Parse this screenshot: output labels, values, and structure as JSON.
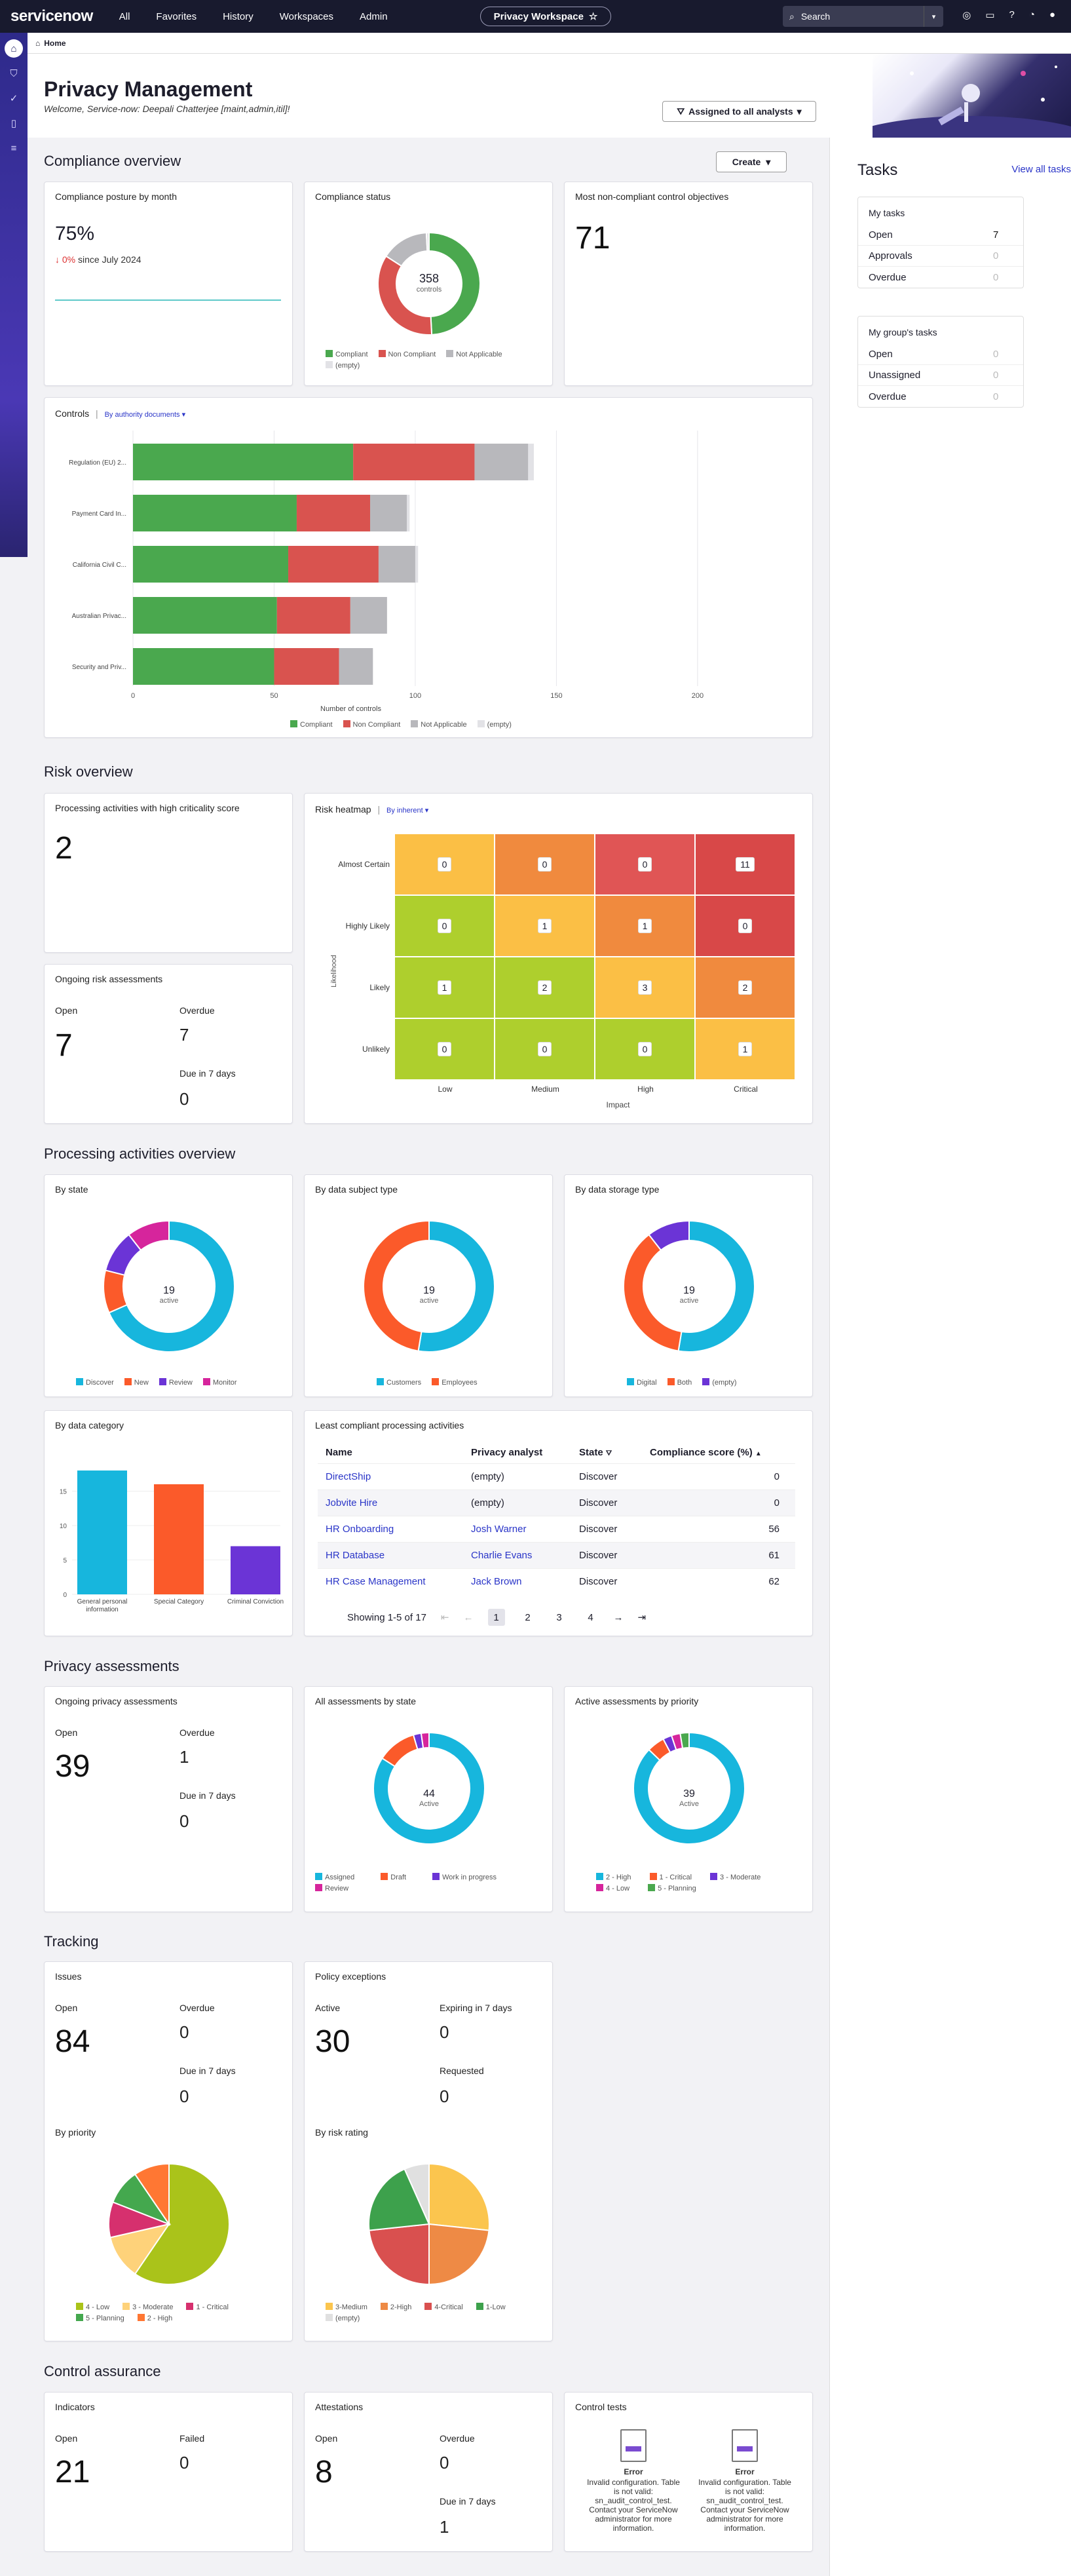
{
  "nav": {
    "logo": "servicenow",
    "links": [
      "All",
      "Favorites",
      "History",
      "Workspaces",
      "Admin"
    ],
    "workspace_pill": "Privacy Workspace",
    "search_placeholder": "Search"
  },
  "tab": {
    "label": "Home"
  },
  "hero": {
    "title": "Privacy Management",
    "welcome": "Welcome, Service-now: Deepali Chatterjee [maint,admin,itil]!",
    "assigned_button": "Assigned to all analysts"
  },
  "compliance": {
    "heading": "Compliance overview",
    "create_button": "Create",
    "posture": {
      "title": "Compliance posture by month",
      "value": "75%",
      "change": "0%",
      "since": "since July 2024"
    },
    "status": {
      "title": "Compliance status",
      "total": "358",
      "total_label": "controls",
      "legend": [
        "Compliant",
        "Non Compliant",
        "Not Applicable",
        "(empty)"
      ]
    },
    "noncompliant": {
      "title": "Most non-compliant control objectives",
      "value": "71"
    },
    "controls": {
      "title": "Controls",
      "filter": "By authority documents",
      "xlabel": "Number of controls",
      "legend": [
        "Compliant",
        "Non Compliant",
        "Not Applicable",
        "(empty)"
      ]
    }
  },
  "risk": {
    "heading": "Risk overview",
    "high_crit": {
      "title": "Processing activities with high criticality score",
      "value": "2"
    },
    "ongoing": {
      "title": "Ongoing risk assessments",
      "open_label": "Open",
      "open": "7",
      "overdue_label": "Overdue",
      "overdue": "7",
      "due_label": "Due in 7 days",
      "due": "0"
    },
    "heatmap": {
      "title": "Risk heatmap",
      "filter": "By inherent",
      "ylabel": "Likelihood",
      "xlabel": "Impact",
      "rows": [
        "Almost Certain",
        "Highly Likely",
        "Likely",
        "Unlikely"
      ],
      "cols": [
        "Low",
        "Medium",
        "High",
        "Critical"
      ],
      "values": [
        [
          "0",
          "0",
          "0",
          "11"
        ],
        [
          "0",
          "1",
          "1",
          "0"
        ],
        [
          "1",
          "2",
          "3",
          "2"
        ],
        [
          "0",
          "0",
          "0",
          "1"
        ]
      ],
      "colors": [
        [
          "#fbbf45",
          "#f08a3e",
          "#e05555",
          "#d84848"
        ],
        [
          "#aecf2d",
          "#fbbf45",
          "#f08a3e",
          "#d84848"
        ],
        [
          "#aecf2d",
          "#aecf2d",
          "#fbbf45",
          "#f08a3e"
        ],
        [
          "#aecf2d",
          "#aecf2d",
          "#aecf2d",
          "#fbbf45"
        ]
      ]
    }
  },
  "processing": {
    "heading": "Processing activities overview",
    "by_state": {
      "title": "By state",
      "center": "19",
      "center_label": "active",
      "legend": [
        "Discover",
        "New",
        "Review",
        "Monitor"
      ]
    },
    "by_subject": {
      "title": "By data subject type",
      "center": "19",
      "center_label": "active",
      "legend": [
        "Customers",
        "Employees"
      ]
    },
    "by_storage": {
      "title": "By data storage type",
      "center": "19",
      "center_label": "active",
      "legend": [
        "Digital",
        "Both",
        "(empty)"
      ]
    },
    "by_category": {
      "title": "By data category"
    },
    "least": {
      "title": "Least compliant processing activities",
      "headers": [
        "Name",
        "Privacy analyst",
        "State",
        "Compliance score (%)"
      ],
      "rows": [
        [
          "DirectShip",
          "(empty)",
          "Discover",
          "0"
        ],
        [
          "Jobvite Hire",
          "(empty)",
          "Discover",
          "0"
        ],
        [
          "HR Onboarding",
          "Josh Warner",
          "Discover",
          "56"
        ],
        [
          "HR Database",
          "Charlie Evans",
          "Discover",
          "61"
        ],
        [
          "HR Case Management",
          "Jack Brown",
          "Discover",
          "62"
        ]
      ],
      "showing": "Showing 1-5 of 17",
      "pages": [
        "1",
        "2",
        "3",
        "4"
      ]
    }
  },
  "privacy": {
    "heading": "Privacy assessments",
    "ongoing": {
      "title": "Ongoing privacy assessments",
      "open_label": "Open",
      "open": "39",
      "overdue_label": "Overdue",
      "overdue": "1",
      "due_label": "Due in 7 days",
      "due": "0"
    },
    "all_by_state": {
      "title": "All assessments by state",
      "center": "44",
      "center_label": "Active",
      "legend": [
        "Assigned",
        "Draft",
        "Work in progress",
        "Review"
      ]
    },
    "active_by_priority": {
      "title": "Active assessments by priority",
      "center": "39",
      "center_label": "Active",
      "legend": [
        "2 - High",
        "1 - Critical",
        "3 - Moderate",
        "4 - Low",
        "5 - Planning"
      ]
    }
  },
  "tracking": {
    "heading": "Tracking",
    "issues": {
      "title": "Issues",
      "open_label": "Open",
      "open": "84",
      "overdue_label": "Overdue",
      "overdue": "0",
      "due_label": "Due in 7 days",
      "due": "0",
      "by_priority": "By priority",
      "legend": [
        "4 - Low",
        "3 - Moderate",
        "1 - Critical",
        "5 - Planning",
        "2 - High"
      ]
    },
    "policy": {
      "title": "Policy exceptions",
      "active_label": "Active",
      "active": "30",
      "exp_label": "Expiring in 7 days",
      "exp": "0",
      "req_label": "Requested",
      "req": "0",
      "by_risk": "By risk rating",
      "legend": [
        "3-Medium",
        "2-High",
        "4-Critical",
        "1-Low",
        "(empty)"
      ]
    }
  },
  "control": {
    "heading": "Control assurance",
    "indicators": {
      "title": "Indicators",
      "open_label": "Open",
      "open": "21",
      "failed_label": "Failed",
      "failed": "0"
    },
    "attest": {
      "title": "Attestations",
      "open_label": "Open",
      "open": "8",
      "overdue_label": "Overdue",
      "overdue": "0",
      "due_label": "Due in 7 days",
      "due": "1"
    },
    "tests": {
      "title": "Control tests",
      "error_title": "Error",
      "error_msg": "Invalid configuration. Table is not valid: sn_audit_control_test. Contact your ServiceNow administrator for more information."
    }
  },
  "tasks": {
    "title": "Tasks",
    "view_all": "View all tasks",
    "my": {
      "title": "My tasks",
      "rows": [
        [
          "Open",
          "7"
        ],
        [
          "Approvals",
          "0"
        ],
        [
          "Overdue",
          "0"
        ]
      ]
    },
    "group": {
      "title": "My group's tasks",
      "rows": [
        [
          "Open",
          "0"
        ],
        [
          "Unassigned",
          "0"
        ],
        [
          "Overdue",
          "0"
        ]
      ]
    }
  },
  "chart_data": [
    {
      "type": "line",
      "title": "Compliance posture by month",
      "x": [
        "",
        ""
      ],
      "values": [
        75,
        75
      ]
    },
    {
      "type": "pie",
      "title": "Compliance status",
      "labels": [
        "Compliant",
        "Non Compliant",
        "Not Applicable",
        "(empty)"
      ],
      "values": [
        176,
        125,
        54,
        3
      ],
      "colors": [
        "#4aa84e",
        "#d9534f",
        "#b8b8bc",
        "#e2e2e6"
      ]
    },
    {
      "type": "bar",
      "title": "Controls",
      "orientation": "horizontal",
      "stacked": true,
      "categories": [
        "Regulation (EU) 2...",
        "Payment Card In...",
        "California Civil C...",
        "Australian Privac...",
        "Security and Priv..."
      ],
      "series": [
        {
          "name": "Compliant",
          "values": [
            78,
            58,
            55,
            51,
            50
          ],
          "color": "#4aa84e"
        },
        {
          "name": "Non Compliant",
          "values": [
            43,
            26,
            32,
            26,
            23
          ],
          "color": "#d9534f"
        },
        {
          "name": "Not Applicable",
          "values": [
            19,
            13,
            13,
            13,
            12
          ],
          "color": "#b8b8bc"
        },
        {
          "name": "(empty)",
          "values": [
            2,
            1,
            1,
            0,
            0
          ],
          "color": "#e2e2e6"
        }
      ],
      "xlabel": "Number of controls",
      "xlim": [
        0,
        210
      ],
      "xticks": [
        0,
        50,
        100,
        150,
        200
      ]
    },
    {
      "type": "pie",
      "title": "By state",
      "labels": [
        "Discover",
        "New",
        "Review",
        "Monitor"
      ],
      "values": [
        13,
        2,
        2,
        2
      ],
      "colors": [
        "#17b6dd",
        "#fb5a2a",
        "#6b34d6",
        "#d6259c"
      ]
    },
    {
      "type": "pie",
      "title": "By data subject type",
      "labels": [
        "Customers",
        "Employees"
      ],
      "values": [
        10,
        9
      ],
      "colors": [
        "#17b6dd",
        "#fb5a2a"
      ]
    },
    {
      "type": "pie",
      "title": "By data storage type",
      "labels": [
        "Digital",
        "Both",
        "(empty)"
      ],
      "values": [
        10,
        7,
        2
      ],
      "colors": [
        "#17b6dd",
        "#fb5a2a",
        "#6b34d6"
      ]
    },
    {
      "type": "bar",
      "title": "By data category",
      "categories": [
        "General personal information",
        "Special Category",
        "Criminal Conviction"
      ],
      "values": [
        18,
        16,
        7
      ],
      "colors": [
        "#17b6dd",
        "#fb5a2a",
        "#6b34d6"
      ],
      "ylim": [
        0,
        20
      ],
      "yticks": [
        0,
        5,
        10,
        15
      ]
    },
    {
      "type": "pie",
      "title": "All assessments by state",
      "labels": [
        "Assigned",
        "Draft",
        "Work in progress",
        "Review"
      ],
      "values": [
        37,
        5,
        1,
        1
      ],
      "colors": [
        "#17b6dd",
        "#fb5a2a",
        "#6b34d6",
        "#d6259c"
      ]
    },
    {
      "type": "pie",
      "title": "Active assessments by priority",
      "labels": [
        "2 - High",
        "1 - Critical",
        "3 - Moderate",
        "4 - Low",
        "5 - Planning"
      ],
      "values": [
        34,
        2,
        1,
        1,
        1
      ],
      "colors": [
        "#17b6dd",
        "#fb5a2a",
        "#6b34d6",
        "#d6259c",
        "#4aa84e"
      ]
    },
    {
      "type": "pie",
      "title": "By priority",
      "labels": [
        "4 - Low",
        "3 - Moderate",
        "1 - Critical",
        "5 - Planning",
        "2 - High"
      ],
      "values": [
        50,
        10,
        8,
        8,
        8
      ],
      "colors": [
        "#aac31a",
        "#fed27a",
        "#d6306e",
        "#44a84e",
        "#ff7733"
      ]
    },
    {
      "type": "pie",
      "title": "By risk rating",
      "labels": [
        "3-Medium",
        "2-High",
        "4-Critical",
        "1-Low",
        "(empty)"
      ],
      "values": [
        8,
        7,
        7,
        6,
        2
      ],
      "colors": [
        "#fbc54e",
        "#ee8a45",
        "#d9504f",
        "#3da14c",
        "#e0e0e0"
      ]
    }
  ]
}
